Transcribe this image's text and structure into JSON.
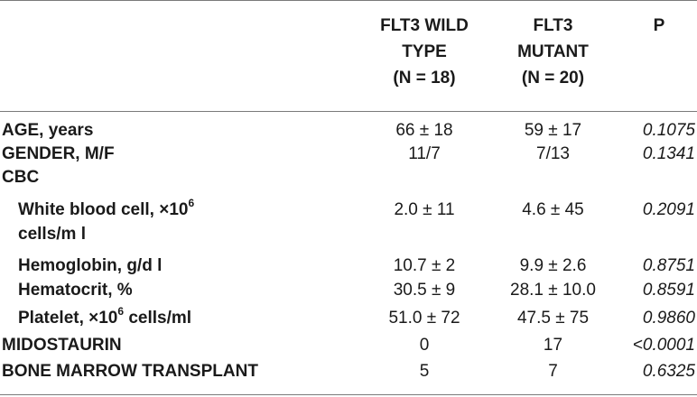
{
  "headers": {
    "col1": "FLT3 WILD\nTYPE\n(N = 18)",
    "col2": "FLT3\nMUTANT\n(N = 20)",
    "col3": "P"
  },
  "rows": {
    "age": {
      "label": "AGE, years",
      "wild": "66 ± 18",
      "mutant": "59 ± 17",
      "p": "0.1075"
    },
    "gender": {
      "label": "GENDER, M/F",
      "wild": "11/7",
      "mutant": "7/13",
      "p": "0.1341"
    },
    "cbc": {
      "label": "CBC"
    },
    "wbc": {
      "label_pre": "White blood cell, ×10",
      "label_sup": "6",
      "label_cont": "cells/m l",
      "wild": "2.0 ± 11",
      "mutant": "4.6 ± 45",
      "p": "0.2091"
    },
    "hgb": {
      "label": "Hemoglobin, g/d l",
      "wild": "10.7 ± 2",
      "mutant": "9.9 ± 2.6",
      "p": "0.8751"
    },
    "hct": {
      "label": "Hematocrit, %",
      "wild": "30.5 ± 9",
      "mutant": "28.1 ± 10.0",
      "p": "0.8591"
    },
    "plt": {
      "label_pre": "Platelet, ×10",
      "label_sup": "6",
      "label_post": " cells/ml",
      "wild": "51.0 ± 72",
      "mutant": "47.5 ± 75",
      "p": "0.9860"
    },
    "mido": {
      "label": "MIDOSTAURIN",
      "wild": "0",
      "mutant": "17",
      "p": "<0.0001"
    },
    "bmt": {
      "label": "BONE MARROW TRANSPLANT",
      "wild": "5",
      "mutant": "7",
      "p": "0.6325"
    }
  }
}
